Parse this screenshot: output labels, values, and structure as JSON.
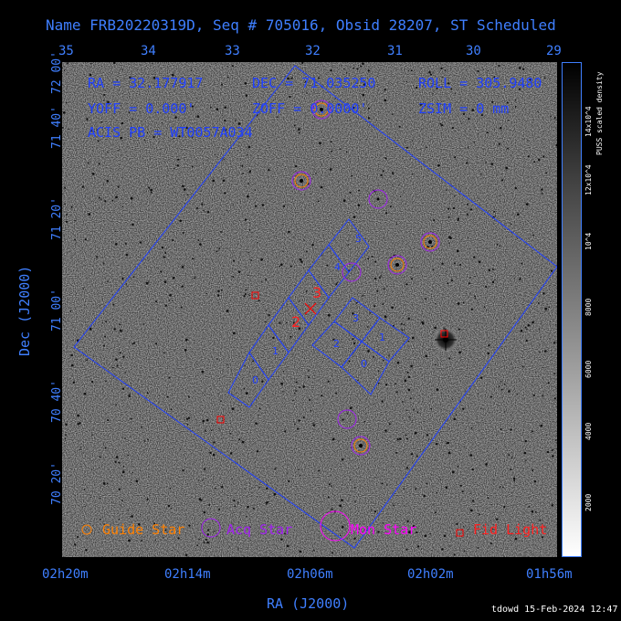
{
  "title": "Name FRB20220319D, Seq # 705016, Obsid 28207, ST Scheduled",
  "info": {
    "ra": "RA = 32.177917",
    "dec": "DEC = 71.035250",
    "roll": "ROLL = 305.9480",
    "yoff": "YOFF =   0.000'",
    "zoff": "ZOFF = 0.0000'",
    "zsim": "ZSIM = 0 mm",
    "acis": "ACIS PB = WT0057A034"
  },
  "ra_top_ticks": [
    "35",
    "34",
    "33",
    "32",
    "31",
    "30",
    "29"
  ],
  "dec_ticks": [
    "72 00'",
    "71 40'",
    "71 20'",
    "71 00'",
    "70 40'",
    "70 20'"
  ],
  "ra_bottom_ticks": [
    "02h20m",
    "02h14m",
    "02h06m",
    "02h02m",
    "01h56m"
  ],
  "y_axis_title": "Dec (J2000)",
  "x_axis_title": "RA (J2000)",
  "colorbar": {
    "title": "PUSS scaled density",
    "ticks": [
      "14x10^4",
      "12x10^4",
      "10^4",
      "8000",
      "6000",
      "4000",
      "2000"
    ]
  },
  "legend": {
    "guide": "Guide Star",
    "acq": "Acq Star",
    "mon": "Mon Star",
    "fid": "Fid Light"
  },
  "chip_labels": {
    "s5": "5",
    "s4": "4",
    "s3": "3",
    "s2": "2",
    "s1": "1",
    "s0": "0",
    "i3": "3",
    "i2": "2",
    "i1": "1",
    "i0": "0",
    "red2": "2",
    "red3": "3"
  },
  "footer": "tdowd 15-Feb-2024 12:47",
  "colors": {
    "axis": "#3f7fff",
    "outline": "#1f3fff",
    "guide": "#ff8000",
    "acq": "#a020f0",
    "mon": "#ff00ff",
    "fid": "#ff0000"
  }
}
